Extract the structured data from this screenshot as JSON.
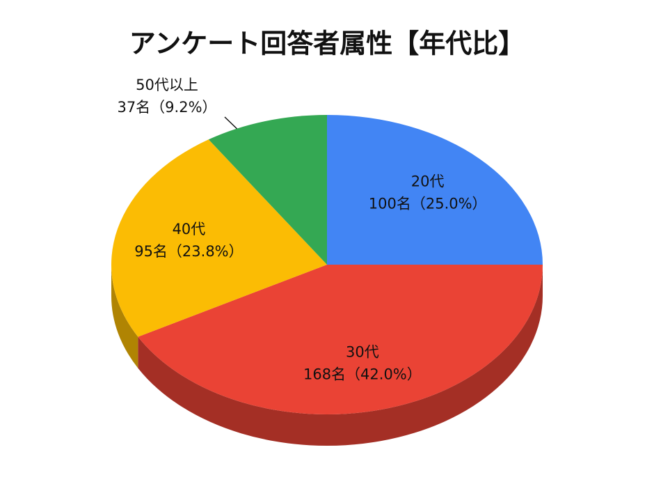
{
  "chart_data": {
    "type": "pie3d",
    "title": "アンケート回答者属性【年代比】",
    "categories": [
      "20代",
      "30代",
      "40代",
      "50代以上"
    ],
    "values": [
      100,
      168,
      95,
      37
    ],
    "value_labels": [
      "100名（25.0%）",
      "168名（42.0%）",
      "95名（23.8%）",
      "37名（9.2%）"
    ],
    "colors": [
      "#4285f4",
      "#ea4335",
      "#fbbc04",
      "#34a853"
    ]
  }
}
